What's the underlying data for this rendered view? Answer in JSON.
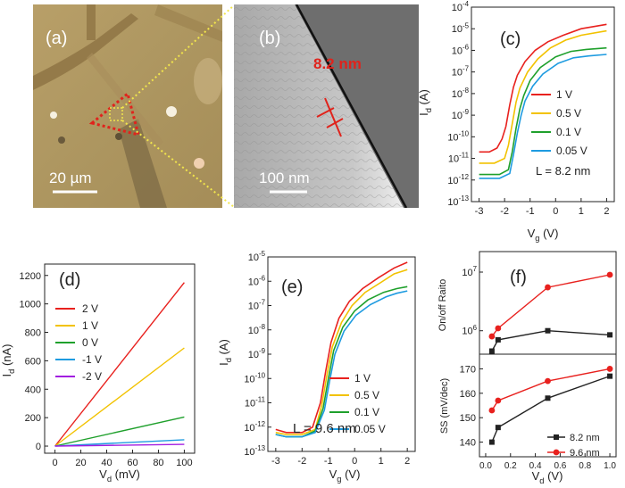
{
  "image_a": {
    "label": "(a)",
    "scale_bar": "20 µm",
    "colors": {
      "background": "#b49a60",
      "electrode": "#8a6a36",
      "marker": "#e0231c",
      "zoom_box": "#f2e64c"
    }
  },
  "image_b": {
    "label": "(b)",
    "gap_label": "8.2 nm",
    "scale_bar": "100 nm",
    "colors": {
      "background": "#7a7a7a",
      "light_side": "#d8d8d8",
      "annotation": "#e0231c"
    }
  },
  "series_colors": {
    "red": "#e8211e",
    "yellow": "#f2c200",
    "green": "#1fa02c",
    "blue": "#1e9be0",
    "purple": "#a21ee0",
    "black": "#222222"
  },
  "chart_data": [
    {
      "id": "c",
      "type": "line",
      "panel_label": "(c)",
      "annotation": "L = 8.2 nm",
      "xlabel": "V",
      "xlabel_sub": "g",
      "xlabel_unit": "(V)",
      "ylabel": "I",
      "ylabel_sub": "d",
      "ylabel_unit": "(A)",
      "xlim": [
        -3.3,
        2.3
      ],
      "ylim_exp": [
        -13,
        -4
      ],
      "y_scale": "log",
      "xticks": [
        "-3",
        "-2",
        "-1",
        "0",
        "1",
        "2"
      ],
      "xtick_values": [
        -3,
        -2,
        -1,
        0,
        1,
        2
      ],
      "ytick_mantissa": "10",
      "ytick_exponents": [
        "-13",
        "-12",
        "-11",
        "-10",
        "-9",
        "-8",
        "-7",
        "-6",
        "-5",
        "-4"
      ],
      "legend_position": "right",
      "series": [
        {
          "name": "1 V",
          "color": "#e8211e",
          "x": [
            -3.0,
            -2.6,
            -2.3,
            -2.1,
            -1.95,
            -1.8,
            -1.65,
            -1.5,
            -1.2,
            -0.8,
            -0.3,
            0.3,
            1.0,
            2.0
          ],
          "y": [
            2e-11,
            2e-11,
            3e-11,
            8e-11,
            3e-10,
            3e-09,
            2e-08,
            7e-08,
            3e-07,
            1e-06,
            2.5e-06,
            5e-06,
            1e-05,
            1.6e-05
          ]
        },
        {
          "name": "0.5 V",
          "color": "#f2c200",
          "x": [
            -3.0,
            -2.4,
            -2.0,
            -1.85,
            -1.7,
            -1.55,
            -1.4,
            -1.1,
            -0.7,
            -0.2,
            0.4,
            1.0,
            2.0
          ],
          "y": [
            6e-12,
            6e-12,
            1e-11,
            4e-11,
            4e-10,
            4e-09,
            1.8e-08,
            1e-07,
            4e-07,
            1.3e-06,
            3e-06,
            5e-06,
            8e-06
          ]
        },
        {
          "name": "0.1 V",
          "color": "#1fa02c",
          "x": [
            -3.0,
            -2.2,
            -1.85,
            -1.7,
            -1.55,
            -1.4,
            -1.25,
            -1.0,
            -0.6,
            0.0,
            0.6,
            1.2,
            2.0
          ],
          "y": [
            1.8e-12,
            1.8e-12,
            3e-12,
            2e-11,
            2.5e-10,
            2e-09,
            8e-09,
            4e-08,
            1.6e-07,
            5e-07,
            9e-07,
            1.1e-06,
            1.3e-06
          ]
        },
        {
          "name": "0.05 V",
          "color": "#1e9be0",
          "x": [
            -3.0,
            -2.2,
            -1.8,
            -1.65,
            -1.5,
            -1.35,
            -1.2,
            -0.9,
            -0.5,
            0.1,
            0.7,
            1.3,
            2.0
          ],
          "y": [
            1.2e-12,
            1.2e-12,
            2e-12,
            1.5e-11,
            1.5e-10,
            1e-09,
            4.5e-09,
            2.2e-08,
            8e-08,
            2.5e-07,
            4.5e-07,
            5.5e-07,
            6.5e-07
          ]
        }
      ]
    },
    {
      "id": "d",
      "type": "line",
      "panel_label": "(d)",
      "xlabel": "V",
      "xlabel_sub": "d",
      "xlabel_unit": "(mV)",
      "ylabel": "I",
      "ylabel_sub": "d",
      "ylabel_unit": "(nA)",
      "xlim": [
        -8,
        108
      ],
      "ylim": [
        -50,
        1280
      ],
      "xticks": [
        "0",
        "20",
        "40",
        "60",
        "80",
        "100"
      ],
      "xtick_values": [
        0,
        20,
        40,
        60,
        80,
        100
      ],
      "yticks": [
        "0",
        "200",
        "400",
        "600",
        "800",
        "1000",
        "1200"
      ],
      "ytick_values": [
        0,
        200,
        400,
        600,
        800,
        1000,
        1200
      ],
      "legend_position": "top-left",
      "series": [
        {
          "name": "2 V",
          "color": "#e8211e",
          "x": [
            0,
            100
          ],
          "y": [
            0,
            1150
          ]
        },
        {
          "name": "1 V",
          "color": "#f2c200",
          "x": [
            0,
            100
          ],
          "y": [
            0,
            690
          ]
        },
        {
          "name": "0 V",
          "color": "#1fa02c",
          "x": [
            0,
            100
          ],
          "y": [
            0,
            205
          ]
        },
        {
          "name": "-1 V",
          "color": "#1e9be0",
          "x": [
            0,
            100
          ],
          "y": [
            0,
            45
          ]
        },
        {
          "name": "-2 V",
          "color": "#a21ee0",
          "x": [
            0,
            100
          ],
          "y": [
            0,
            12
          ]
        }
      ]
    },
    {
      "id": "e",
      "type": "line",
      "panel_label": "(e)",
      "annotation": "L = 9.6 nm",
      "xlabel": "V",
      "xlabel_sub": "g",
      "xlabel_unit": "(V)",
      "ylabel": "I",
      "ylabel_sub": "d",
      "ylabel_unit": "(A)",
      "xlim": [
        -3.3,
        2.3
      ],
      "ylim_exp": [
        -13,
        -5
      ],
      "y_scale": "log",
      "xticks": [
        "-3",
        "-2",
        "-1",
        "0",
        "1",
        "2"
      ],
      "xtick_values": [
        -3,
        -2,
        -1,
        0,
        1,
        2
      ],
      "ytick_mantissa": "10",
      "ytick_exponents": [
        "-13",
        "-12",
        "-11",
        "-10",
        "-9",
        "-8",
        "-7",
        "-6",
        "-5"
      ],
      "legend_position": "bottom-right",
      "series": [
        {
          "name": "1 V",
          "color": "#e8211e",
          "x": [
            -3.0,
            -2.6,
            -2.0,
            -1.6,
            -1.3,
            -1.1,
            -0.9,
            -0.6,
            -0.2,
            0.3,
            0.9,
            1.5,
            2.0
          ],
          "y": [
            8e-13,
            6e-13,
            6e-13,
            1e-12,
            1e-11,
            2e-10,
            3e-09,
            3e-08,
            1.5e-07,
            5e-07,
            1.4e-06,
            3.5e-06,
            6e-06
          ]
        },
        {
          "name": "0.5 V",
          "color": "#f2c200",
          "x": [
            -3.0,
            -2.6,
            -2.0,
            -1.5,
            -1.25,
            -1.05,
            -0.85,
            -0.5,
            -0.1,
            0.4,
            1.0,
            1.5,
            2.0
          ],
          "y": [
            6e-13,
            5e-13,
            5e-13,
            8e-13,
            8e-12,
            1.5e-10,
            2e-09,
            2e-08,
            1e-07,
            3.5e-07,
            9e-07,
            2e-06,
            3e-06
          ]
        },
        {
          "name": "0.1 V",
          "color": "#1fa02c",
          "x": [
            -3.0,
            -2.6,
            -2.0,
            -1.5,
            -1.2,
            -1.0,
            -0.8,
            -0.45,
            0.0,
            0.5,
            1.1,
            1.6,
            2.0
          ],
          "y": [
            5e-13,
            4e-13,
            4e-13,
            7e-13,
            6e-12,
            1e-10,
            1.4e-09,
            1.3e-08,
            6e-08,
            1.7e-07,
            3.5e-07,
            5e-07,
            6e-07
          ]
        },
        {
          "name": "0.05 V",
          "color": "#1e9be0",
          "x": [
            -3.0,
            -2.6,
            -2.0,
            -1.5,
            -1.15,
            -0.95,
            -0.75,
            -0.4,
            0.05,
            0.6,
            1.2,
            1.6,
            2.0
          ],
          "y": [
            5e-13,
            4e-13,
            4e-13,
            6e-13,
            5e-12,
            8e-11,
            1e-09,
            9e-09,
            4e-08,
            1.1e-07,
            2.3e-07,
            3.2e-07,
            4e-07
          ]
        }
      ]
    },
    {
      "id": "f-top",
      "type": "line",
      "panel_label": "(f)",
      "xlabel": "",
      "ylabel": "On/off Raito",
      "xlim": [
        -0.05,
        1.05
      ],
      "ylim_exp": [
        5.6,
        7.35
      ],
      "y_scale": "log",
      "ytick_mantissa": "10",
      "ytick_exponents": [
        "6",
        "7"
      ],
      "series": [
        {
          "name": "8.2 nm",
          "color": "#222222",
          "marker": "square",
          "x": [
            0.05,
            0.1,
            0.5,
            1.0
          ],
          "y": [
            450000,
            700000,
            1000000,
            850000
          ]
        },
        {
          "name": "9.6 nm",
          "color": "#e8211e",
          "marker": "circle",
          "x": [
            0.05,
            0.1,
            0.5,
            1.0
          ],
          "y": [
            800000,
            1100000,
            5500000,
            9000000
          ]
        }
      ]
    },
    {
      "id": "f-bottom",
      "type": "line",
      "xlabel": "V",
      "xlabel_sub": "d",
      "xlabel_unit": "(V)",
      "ylabel": "SS (mV/dec)",
      "xlim": [
        -0.05,
        1.05
      ],
      "ylim": [
        134,
        176
      ],
      "xticks": [
        "0.0",
        "0.2",
        "0.4",
        "0.6",
        "0.8",
        "1.0"
      ],
      "xtick_values": [
        0.0,
        0.2,
        0.4,
        0.6,
        0.8,
        1.0
      ],
      "yticks": [
        "140",
        "150",
        "160",
        "170"
      ],
      "ytick_values": [
        140,
        150,
        160,
        170
      ],
      "legend_position": "bottom-right",
      "series": [
        {
          "name": "8.2 nm",
          "color": "#222222",
          "marker": "square",
          "x": [
            0.05,
            0.1,
            0.5,
            1.0
          ],
          "y": [
            140,
            146,
            158,
            167
          ]
        },
        {
          "name": "9.6 nm",
          "color": "#e8211e",
          "marker": "circle",
          "x": [
            0.05,
            0.1,
            0.5,
            1.0
          ],
          "y": [
            153,
            157,
            165,
            170
          ]
        }
      ]
    }
  ]
}
